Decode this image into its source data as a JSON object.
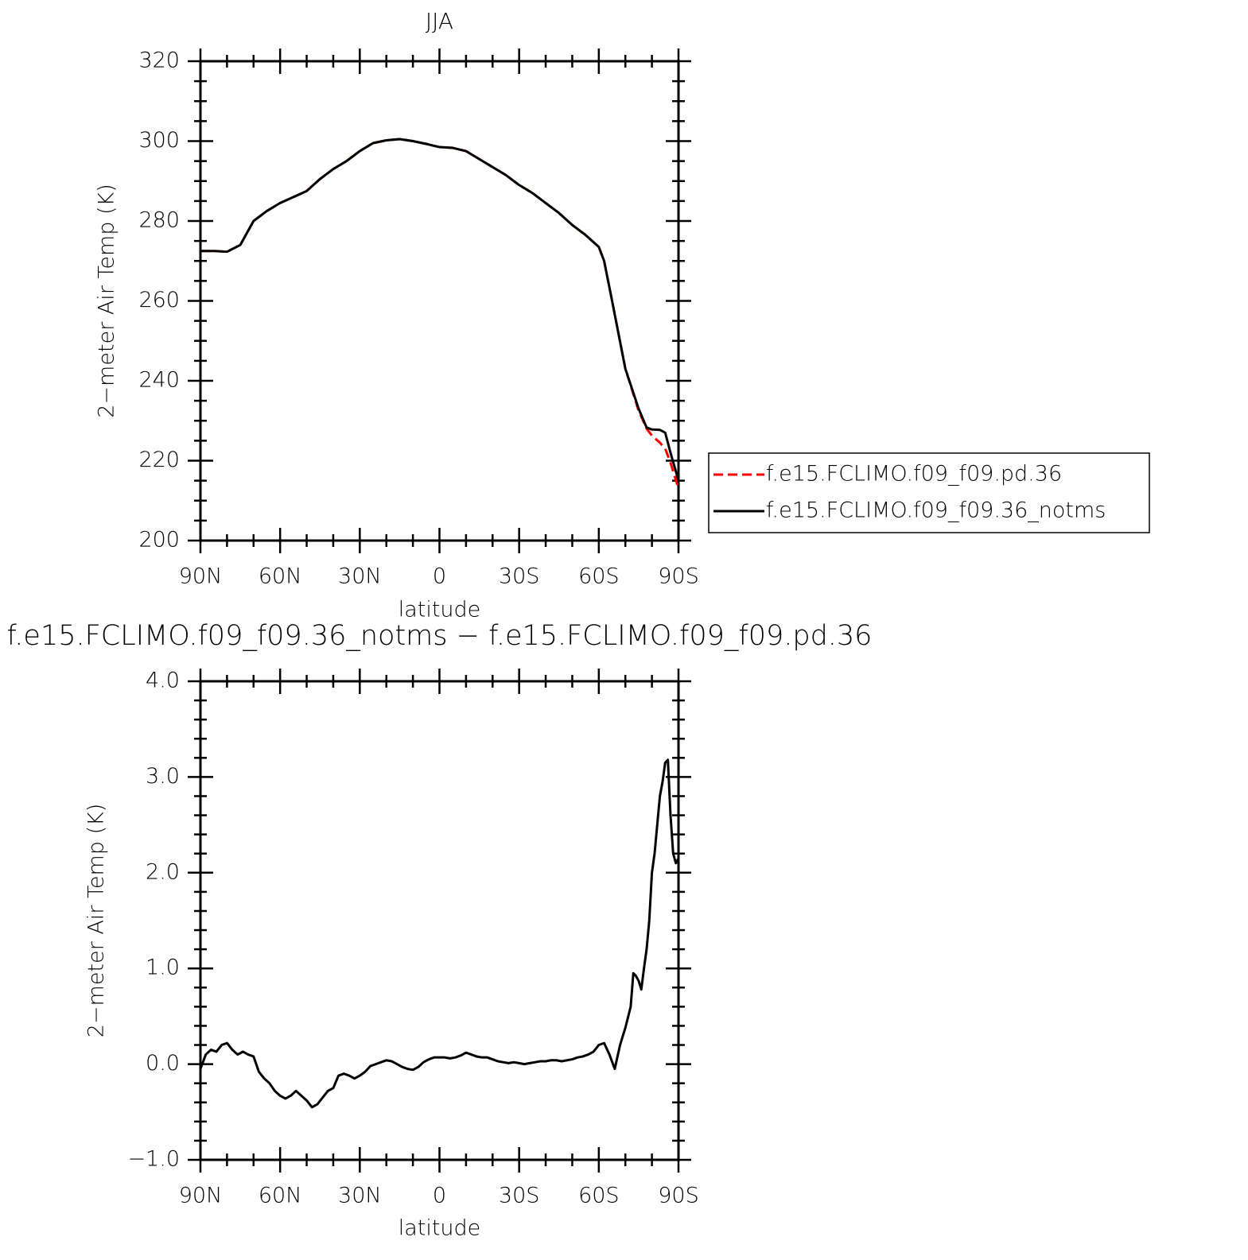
{
  "chart_data": [
    {
      "type": "line",
      "title": "JJA",
      "xlabel": "latitude",
      "ylabel": "2−meter Air Temp (K)",
      "x": [
        90,
        85,
        80,
        75,
        70,
        65,
        60,
        55,
        50,
        45,
        40,
        35,
        30,
        25,
        20,
        15,
        10,
        5,
        0,
        -5,
        -10,
        -15,
        -20,
        -25,
        -30,
        -35,
        -40,
        -45,
        -50,
        -55,
        -60,
        -62,
        -65,
        -70,
        -75,
        -78,
        -80,
        -83,
        -85,
        -87,
        -90
      ],
      "xlim": [
        90,
        -90
      ],
      "xticks": [
        {
          "value": 90,
          "label": "90N"
        },
        {
          "value": 60,
          "label": "60N"
        },
        {
          "value": 30,
          "label": "30N"
        },
        0,
        {
          "value": -30,
          "label": "30S"
        },
        {
          "value": -60,
          "label": "60S"
        },
        {
          "value": -90,
          "label": "90S"
        }
      ],
      "ylim": [
        200,
        320
      ],
      "yticks": [
        200,
        220,
        240,
        260,
        280,
        300,
        320
      ],
      "legend": "right",
      "series": [
        {
          "name": "f.e15.FCLIMO.f09_f09.pd.36",
          "color": "#ff0000",
          "linestyle": "dashed",
          "values": [
            272.5,
            272.5,
            272.3,
            274,
            280,
            282.5,
            284.5,
            286,
            287.5,
            290.5,
            293,
            295,
            297.5,
            299.5,
            300.2,
            300.5,
            300,
            299.3,
            298.5,
            298.3,
            297.5,
            295.5,
            293.5,
            291.5,
            289,
            287,
            284.5,
            282,
            279,
            276.5,
            273.5,
            270,
            260,
            243,
            232.5,
            228,
            226.3,
            224.5,
            223,
            219.5,
            213
          ]
        },
        {
          "name": "f.e15.FCLIMO.f09_f09.36_notms",
          "color": "#000000",
          "linestyle": "solid",
          "values": [
            272.5,
            272.5,
            272.3,
            274,
            280,
            282.5,
            284.5,
            286,
            287.5,
            290.5,
            293,
            295,
            297.5,
            299.5,
            300.2,
            300.5,
            300,
            299.3,
            298.5,
            298.3,
            297.5,
            295.5,
            293.5,
            291.5,
            289,
            287,
            284.5,
            282,
            279,
            276.5,
            273.5,
            270,
            260,
            243,
            233,
            228.3,
            227.8,
            227.7,
            227,
            222,
            215
          ]
        }
      ]
    },
    {
      "type": "line",
      "title": "f.e15.FCLIMO.f09_f09.36_notms − f.e15.FCLIMO.f09_f09.pd.36",
      "xlabel": "latitude",
      "ylabel": "2−meter Air Temp (K)",
      "x": [
        90,
        88,
        86,
        84,
        82,
        80,
        78,
        76,
        74,
        72,
        70,
        68,
        66,
        64,
        62,
        60,
        58,
        56,
        54,
        52,
        50,
        48,
        46,
        44,
        42,
        40,
        38,
        36,
        34,
        32,
        30,
        28,
        26,
        24,
        22,
        20,
        18,
        16,
        14,
        12,
        10,
        8,
        6,
        4,
        2,
        0,
        -2,
        -4,
        -6,
        -8,
        -10,
        -12,
        -14,
        -16,
        -18,
        -20,
        -22,
        -24,
        -26,
        -28,
        -30,
        -32,
        -34,
        -36,
        -38,
        -40,
        -42,
        -44,
        -46,
        -48,
        -50,
        -52,
        -54,
        -56,
        -58,
        -60,
        -62,
        -64,
        -66,
        -68,
        -70,
        -72,
        -73,
        -74,
        -75,
        -76,
        -77,
        -78,
        -79,
        -80,
        -81,
        -82,
        -83,
        -84,
        -85,
        -86,
        -87,
        -88,
        -89,
        -90
      ],
      "xlim": [
        90,
        -90
      ],
      "xticks": [
        {
          "value": 90,
          "label": "90N"
        },
        {
          "value": 60,
          "label": "60N"
        },
        {
          "value": 30,
          "label": "30N"
        },
        0,
        {
          "value": -30,
          "label": "30S"
        },
        {
          "value": -60,
          "label": "60S"
        },
        {
          "value": -90,
          "label": "90S"
        }
      ],
      "ylim": [
        -1,
        4
      ],
      "yticks": [
        {
          "value": -1,
          "label": "−1.0"
        },
        {
          "value": 0,
          "label": "0.0"
        },
        {
          "value": 1,
          "label": "1.0"
        },
        {
          "value": 2,
          "label": "2.0"
        },
        {
          "value": 3,
          "label": "3.0"
        },
        {
          "value": 4,
          "label": "4.0"
        }
      ],
      "series": [
        {
          "color": "#000000",
          "linestyle": "solid",
          "values": [
            -0.05,
            0.1,
            0.15,
            0.13,
            0.2,
            0.22,
            0.15,
            0.1,
            0.13,
            0.1,
            0.08,
            -0.08,
            -0.15,
            -0.2,
            -0.28,
            -0.33,
            -0.36,
            -0.33,
            -0.28,
            -0.33,
            -0.38,
            -0.45,
            -0.42,
            -0.35,
            -0.28,
            -0.25,
            -0.12,
            -0.1,
            -0.12,
            -0.15,
            -0.12,
            -0.08,
            -0.02,
            0.0,
            0.02,
            0.04,
            0.03,
            0.0,
            -0.03,
            -0.05,
            -0.06,
            -0.03,
            0.02,
            0.05,
            0.07,
            0.07,
            0.07,
            0.06,
            0.07,
            0.09,
            0.12,
            0.1,
            0.08,
            0.07,
            0.07,
            0.05,
            0.03,
            0.02,
            0.01,
            0.02,
            0.01,
            0.0,
            0.01,
            0.02,
            0.03,
            0.03,
            0.04,
            0.04,
            0.03,
            0.04,
            0.05,
            0.07,
            0.08,
            0.1,
            0.13,
            0.2,
            0.22,
            0.1,
            -0.05,
            0.2,
            0.38,
            0.6,
            0.95,
            0.92,
            0.87,
            0.78,
            1.0,
            1.2,
            1.5,
            2.0,
            2.2,
            2.5,
            2.8,
            2.95,
            3.15,
            3.18,
            2.6,
            2.2,
            2.1,
            2.15
          ]
        }
      ]
    }
  ]
}
